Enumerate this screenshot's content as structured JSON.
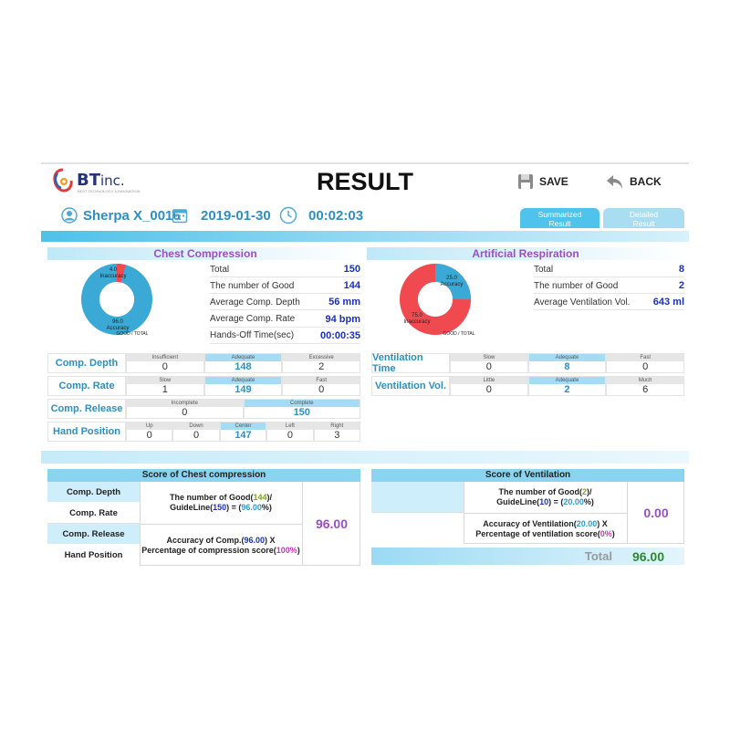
{
  "header": {
    "logo_text": "BT",
    "logo_suffix": "inc.",
    "logo_tagline": "BEST TECHNOLOGY & INNOVATION",
    "title": "RESULT",
    "save_label": "SAVE",
    "back_label": "BACK"
  },
  "info": {
    "user": "Sherpa X_0016",
    "date": "2019-01-30",
    "time": "00:02:03"
  },
  "tabs": [
    {
      "label_line1": "Summarized",
      "label_line2": "Result"
    },
    {
      "label_line1": "Detailed",
      "label_line2": "Result"
    }
  ],
  "chest": {
    "title": "Chest Compression",
    "donut": {
      "good": 96.0,
      "bad": 4.0,
      "good_label": "96.0",
      "good_caption": "Accuracy",
      "bad_label": "4.0",
      "bad_caption": "Inaccuracy",
      "legend": "GOOD / TOTAL"
    },
    "stats": [
      {
        "label": "Total",
        "value": "150"
      },
      {
        "label": "The number of Good",
        "value": "144"
      },
      {
        "label": "Average Comp. Depth",
        "value": "56 mm"
      },
      {
        "label": "Average Comp. Rate",
        "value": "94 bpm"
      },
      {
        "label": "Hands-Off Time(sec)",
        "value": "00:00:35"
      }
    ],
    "details": [
      {
        "label": "Comp. Depth",
        "cells": [
          {
            "h": "Insufficient",
            "v": "0"
          },
          {
            "h": "Adequate",
            "v": "148"
          },
          {
            "h": "Excessive",
            "v": "2"
          }
        ],
        "hl": 1
      },
      {
        "label": "Comp. Rate",
        "cells": [
          {
            "h": "Slow",
            "v": "1"
          },
          {
            "h": "Adequate",
            "v": "149"
          },
          {
            "h": "Fast",
            "v": "0"
          }
        ],
        "hl": 1
      },
      {
        "label": "Comp. Release",
        "cells": [
          {
            "h": "Incomplete",
            "v": "0"
          },
          {
            "h": "Complete",
            "v": "150"
          }
        ],
        "hl": 1
      },
      {
        "label": "Hand Position",
        "cells": [
          {
            "h": "Up",
            "v": "0"
          },
          {
            "h": "Down",
            "v": "0"
          },
          {
            "h": "Center",
            "v": "147"
          },
          {
            "h": "Left",
            "v": "0"
          },
          {
            "h": "Right",
            "v": "3"
          }
        ],
        "hl": 2
      }
    ]
  },
  "resp": {
    "title": "Artificial Respiration",
    "donut": {
      "good": 25.0,
      "bad": 75.0,
      "good_label": "25.0",
      "good_caption": "Accuracy",
      "bad_label": "75.0",
      "bad_caption": "Inaccuracy",
      "legend": "GOOD / TOTAL"
    },
    "stats": [
      {
        "label": "Total",
        "value": "8"
      },
      {
        "label": "The number of Good",
        "value": "2"
      },
      {
        "label": "Average Ventilation Vol.",
        "value": "643 ml"
      }
    ],
    "details": [
      {
        "label": "Ventilation Time",
        "cells": [
          {
            "h": "Slow",
            "v": "0"
          },
          {
            "h": "Adequate",
            "v": "8"
          },
          {
            "h": "Fast",
            "v": "0"
          }
        ],
        "hl": 1
      },
      {
        "label": "Ventilation Vol.",
        "cells": [
          {
            "h": "Little",
            "v": "0"
          },
          {
            "h": "Adequate",
            "v": "2"
          },
          {
            "h": "Much",
            "v": "6"
          }
        ],
        "hl": 1
      }
    ]
  },
  "score_chest": {
    "title": "Score of Chest compression",
    "rows": [
      "Comp. Depth",
      "Comp. Rate",
      "Comp. Release",
      "Hand Position"
    ],
    "f1_a": "The number of Good(",
    "f1_good": "144",
    "f1_b": ")/",
    "f1_c": "GuideLine(",
    "f1_guide": "150",
    "f1_d": ") = (",
    "f1_pct": "96.00",
    "f1_e": "%)",
    "f2_a": "Accuracy of Comp.(",
    "f2_acc": "96.00",
    "f2_b": ") X",
    "f2_c": "Percentage of compression score(",
    "f2_pct": "100%",
    "f2_d": ")",
    "value": "96.00"
  },
  "score_vent": {
    "title": "Score of Ventilation",
    "f1_a": "The number of Good(",
    "f1_good": "2",
    "f1_b": ")/",
    "f1_c": "GuideLine(",
    "f1_guide": "10",
    "f1_d": ") = (",
    "f1_pct": "20.00",
    "f1_e": "%)",
    "f2_a": "Accuracy of Ventilation(",
    "f2_acc": "20.00",
    "f2_b": ") X",
    "f2_c": "Percentage of ventilation score(",
    "f2_pct": "0%",
    "f2_d": ")",
    "value": "0.00"
  },
  "total": {
    "label": "Total",
    "value": "96.00"
  },
  "colors": {
    "accent": "#4fc3ec",
    "good": "#3aa9d6",
    "bad": "#f04a50",
    "purple": "#9b4fc2"
  }
}
